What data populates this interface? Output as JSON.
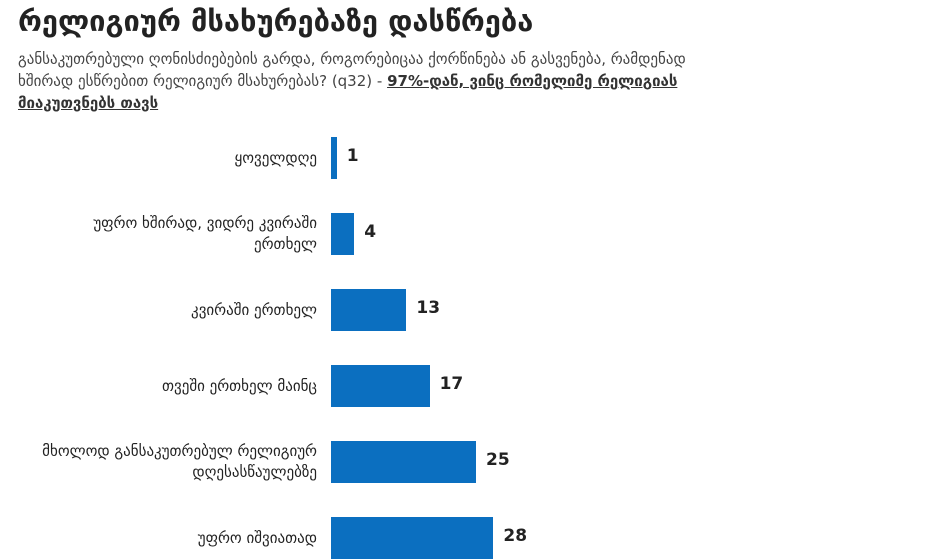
{
  "chart_data": {
    "type": "bar",
    "orientation": "horizontal",
    "title": "რელიგიურ მსახურებაზე დასწრება",
    "subtitle": "განსაკუთრებული ღონისძიებების გარდა, როგორებიცაა ქორწინება ან გასვენება, რამდენად ხშირად ესწრებით რელიგიურ მსახურებას? (q32) - ",
    "subtitle_note": "97%-დან, ვინც რომელიმე რელიგიას მიაკუთვნებს თავს",
    "categories": [
      "ყოველდღე",
      "უფრო ხშირად, ვიდრე კვირაში ერთხელ",
      "კვირაში ერთხელ",
      "თვეში ერთხელ მაინც",
      "მხოლოდ განსაკუთრებულ რელიგიურ დღესასწაულებზე",
      "უფრო იშვიათად"
    ],
    "values": [
      1,
      4,
      13,
      17,
      25,
      28
    ],
    "color": "#0b6fc0"
  }
}
